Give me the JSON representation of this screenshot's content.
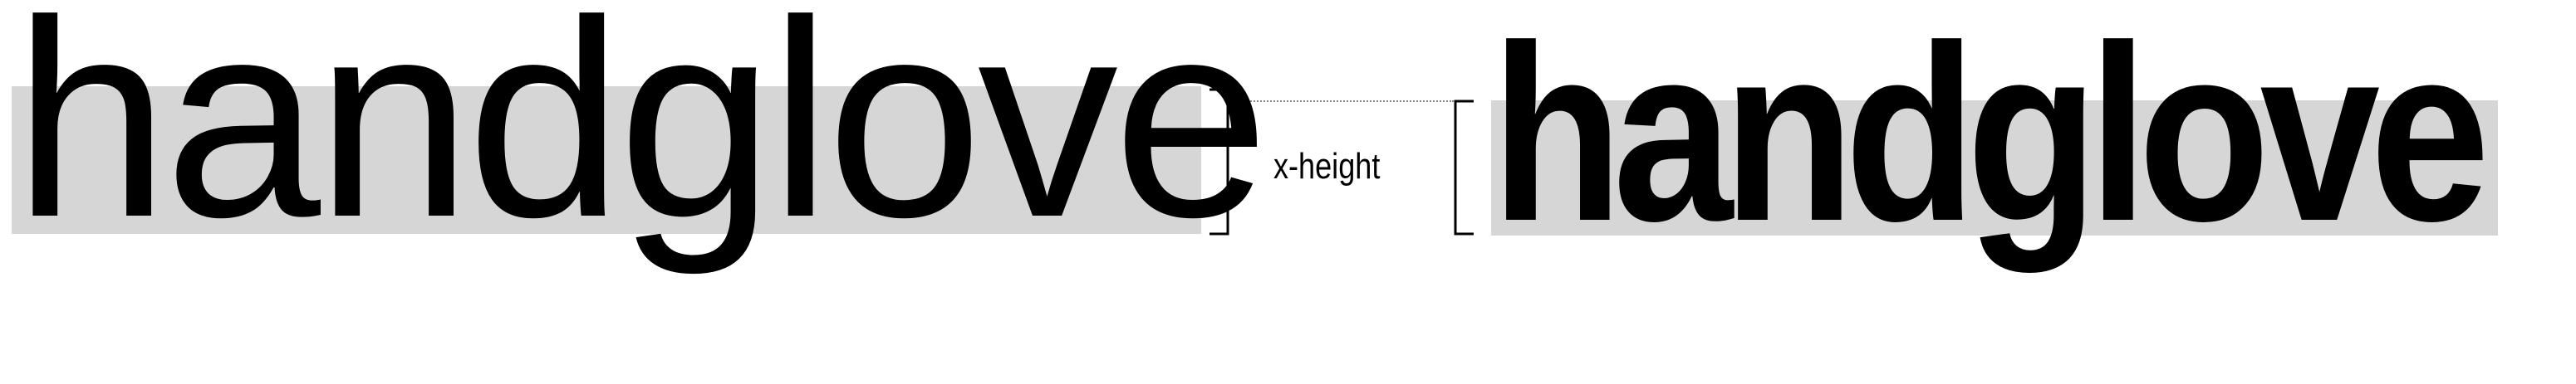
{
  "words": {
    "regular": "handglove",
    "condensed_bold": "handglove"
  },
  "measure_label": "x-height",
  "colors": {
    "ink": "#000000",
    "x_height_band": "#d6d6d6",
    "guide_line": "#8a8a8a",
    "background": "#ffffff"
  }
}
